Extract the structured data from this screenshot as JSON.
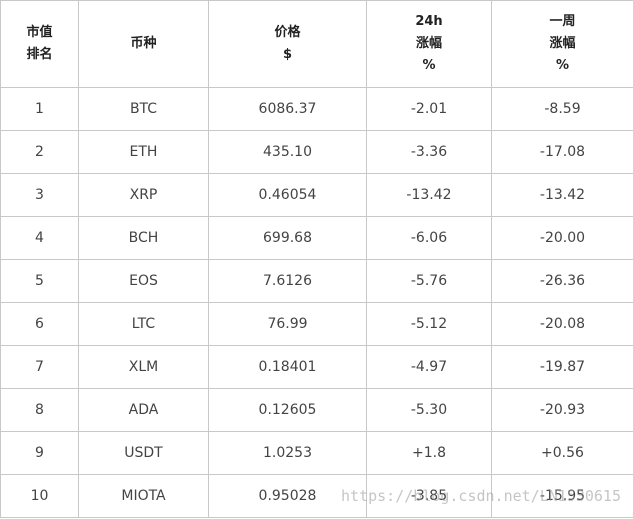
{
  "table": {
    "headers": [
      [
        "市值",
        "排名"
      ],
      [
        "币种"
      ],
      [
        "价格",
        "$"
      ],
      [
        "24h",
        "涨幅",
        "%"
      ],
      [
        "一周",
        "涨幅",
        "%"
      ]
    ],
    "rows": [
      [
        "1",
        "BTC",
        "6086.37",
        "-2.01",
        "-8.59"
      ],
      [
        "2",
        "ETH",
        "435.10",
        "-3.36",
        "-17.08"
      ],
      [
        "3",
        "XRP",
        "0.46054",
        "-13.42",
        "-13.42"
      ],
      [
        "4",
        "BCH",
        "699.68",
        "-6.06",
        "-20.00"
      ],
      [
        "5",
        "EOS",
        "7.6126",
        "-5.76",
        "-26.36"
      ],
      [
        "6",
        "LTC",
        "76.99",
        "-5.12",
        "-20.08"
      ],
      [
        "7",
        "XLM",
        "0.18401",
        "-4.97",
        "-19.87"
      ],
      [
        "8",
        "ADA",
        "0.12605",
        "-5.30",
        "-20.93"
      ],
      [
        "9",
        "USDT",
        "1.0253",
        "+1.8",
        "+0.56"
      ],
      [
        "10",
        "MIOTA",
        "0.95028",
        "-3.85",
        "-15.95"
      ]
    ]
  },
  "watermark": "https://blog.csdn.net/LN1530615"
}
